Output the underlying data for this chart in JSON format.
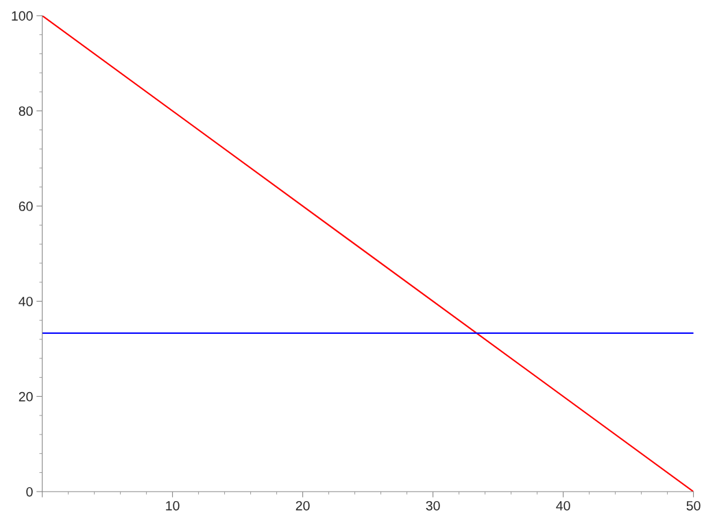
{
  "chart_data": {
    "type": "line",
    "x": [
      0,
      50
    ],
    "series": [
      {
        "color": "#ff0000",
        "values": [
          100,
          0
        ]
      },
      {
        "color": "#0000ff",
        "values": [
          33.3,
          33.3
        ]
      }
    ],
    "xlim": [
      0,
      50
    ],
    "ylim": [
      0,
      100
    ],
    "xticks": [
      {
        "value": 0,
        "label": null
      },
      10,
      20,
      30,
      40,
      50
    ],
    "yticks": [
      0,
      20,
      40,
      60,
      80,
      100
    ],
    "grid": false,
    "legend": false,
    "marker": "none",
    "line_style": "solid"
  }
}
